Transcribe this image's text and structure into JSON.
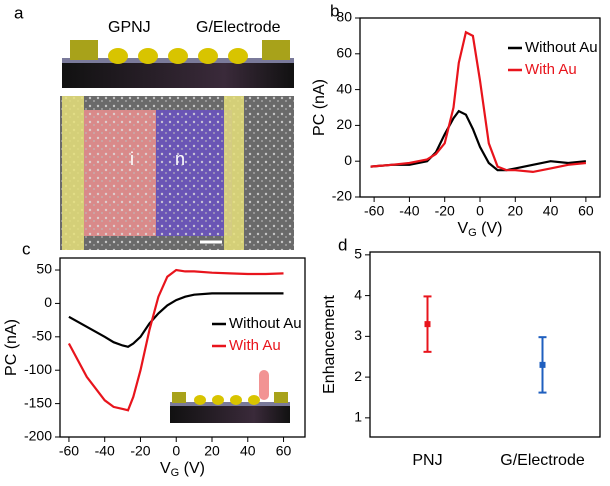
{
  "panel_a": {
    "panel_label": "a",
    "labels": [
      "GPNJ",
      "G/Electrode",
      "i",
      "n"
    ]
  },
  "chart_data": [
    {
      "type": "line",
      "panel_label": "b",
      "ylabel": "PC (nA)",
      "xlabel": [
        "V",
        "G",
        " (V)"
      ],
      "x": [
        -62,
        -50,
        -40,
        -30,
        -25,
        -20,
        -15,
        -12,
        -8,
        -4,
        0,
        5,
        10,
        15,
        20,
        30,
        40,
        50,
        60
      ],
      "series": [
        {
          "name": "Without Au",
          "color": "#000000",
          "values": [
            -3,
            -2,
            -2,
            0,
            5,
            15,
            24,
            28,
            26,
            18,
            8,
            -1,
            -5,
            -5,
            -4,
            -2,
            0,
            -1,
            0
          ]
        },
        {
          "name": "With Au",
          "color": "#e8141c",
          "values": [
            -3,
            -2,
            -1,
            1,
            4,
            10,
            30,
            55,
            72,
            70,
            45,
            10,
            -3,
            -5,
            -5,
            -6,
            -4,
            -2,
            -1
          ]
        }
      ],
      "xlim": [
        -68,
        68
      ],
      "ylim": [
        -20,
        80
      ],
      "xticks": [
        -60,
        -40,
        -20,
        0,
        20,
        40,
        60
      ],
      "yticks": [
        -20,
        0,
        20,
        40,
        60,
        80
      ],
      "legend": "upper right"
    },
    {
      "type": "line",
      "panel_label": "c",
      "ylabel": "PC (nA)",
      "xlabel": [
        "V",
        "G",
        " (V)"
      ],
      "x": [
        -60,
        -50,
        -40,
        -35,
        -30,
        -27,
        -24,
        -20,
        -15,
        -10,
        -5,
        0,
        5,
        10,
        20,
        30,
        40,
        50,
        60
      ],
      "series": [
        {
          "name": "Without Au",
          "color": "#000000",
          "values": [
            -20,
            -35,
            -50,
            -58,
            -63,
            -65,
            -60,
            -50,
            -30,
            -15,
            -3,
            5,
            10,
            13,
            15,
            15,
            15,
            15,
            15
          ]
        },
        {
          "name": "With Au",
          "color": "#e8141c",
          "values": [
            -60,
            -110,
            -145,
            -155,
            -158,
            -160,
            -140,
            -100,
            -40,
            10,
            40,
            50,
            48,
            48,
            46,
            45,
            44,
            44,
            45
          ]
        }
      ],
      "xlim": [
        -65,
        72
      ],
      "ylim": [
        -200,
        68
      ],
      "xticks": [
        -60,
        -40,
        -20,
        0,
        20,
        40,
        60
      ],
      "yticks": [
        -200,
        -150,
        -100,
        -50,
        0,
        50
      ],
      "legend": "center right"
    },
    {
      "type": "errorbar",
      "panel_label": "d",
      "ylabel": "Enhancement",
      "categories": [
        "PNJ",
        "G/Electrode"
      ],
      "values": [
        3.3,
        2.3
      ],
      "errors": [
        0.68,
        0.68
      ],
      "colors": [
        "#e8141c",
        "#1f5fbf"
      ],
      "ylim": [
        0.53,
        5.07
      ],
      "yticks": [
        1,
        2,
        3,
        4,
        5
      ]
    }
  ]
}
